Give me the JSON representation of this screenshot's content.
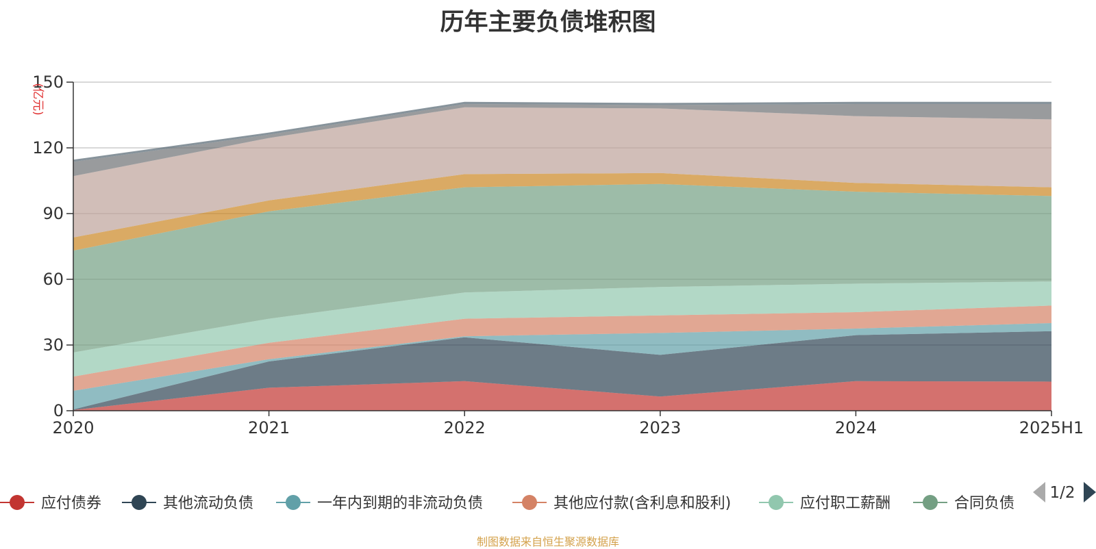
{
  "footer": "制图数据来自恒生聚源数据库",
  "chart_data": {
    "type": "area",
    "stacked": true,
    "title": "历年主要负债堆积图",
    "unit_label": "(亿元)",
    "categories": [
      "2020",
      "2021",
      "2022",
      "2023",
      "2024",
      "2025H1"
    ],
    "ylim": [
      0,
      150
    ],
    "yticks": [
      0,
      30,
      60,
      90,
      120,
      150
    ],
    "grid": true,
    "legend_position": "bottom",
    "legend_page": "1/2",
    "series": [
      {
        "name": "应付债券",
        "color": "#c23531",
        "values": [
          0.3,
          10.5,
          13.5,
          6.5,
          13.5,
          13.3
        ]
      },
      {
        "name": "其他流动负债",
        "color": "#2f4554",
        "values": [
          0.3,
          12.0,
          20.0,
          19.0,
          21.0,
          23.0
        ]
      },
      {
        "name": "一年内到期的非流动负债",
        "color": "#61a0a8",
        "values": [
          8.5,
          1.0,
          0.5,
          10.0,
          3.0,
          3.7
        ]
      },
      {
        "name": "其他应付款(含利息和股利)",
        "color": "#d48265",
        "values": [
          6.5,
          7.5,
          8.0,
          8.0,
          7.5,
          8.0
        ]
      },
      {
        "name": "应付职工薪酬",
        "color": "#91c7ae",
        "values": [
          11.0,
          11.0,
          12.0,
          13.0,
          13.0,
          11.0
        ]
      },
      {
        "name": "合同负债",
        "color": "#749f83",
        "values": [
          46.5,
          49.0,
          48.0,
          47.0,
          42.0,
          39.0
        ]
      },
      {
        "color": "#ca8622",
        "values": [
          6.0,
          5.0,
          6.0,
          5.0,
          4.0,
          4.0
        ]
      },
      {
        "color": "#bda29a",
        "values": [
          28.0,
          28.5,
          30.5,
          29.5,
          30.5,
          31.0
        ]
      },
      {
        "color": "#6e7074",
        "values": [
          6.5,
          1.5,
          1.5,
          1.5,
          5.5,
          7.0
        ]
      },
      {
        "color": "#546570",
        "values": [
          1.0,
          1.0,
          1.0,
          1.0,
          1.0,
          1.0
        ]
      }
    ]
  }
}
